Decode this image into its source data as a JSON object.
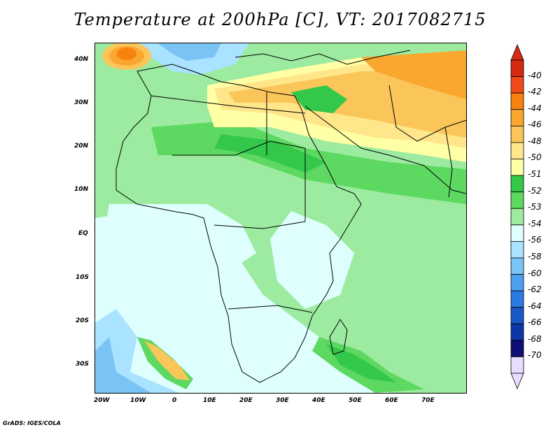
{
  "title": "Temperature at 200hPa [C], VT: 2017082715",
  "footer": "GrADS: IGES/COLA",
  "map": {
    "lat_ticks": [
      "40N",
      "30N",
      "20N",
      "10N",
      "EQ",
      "10S",
      "20S",
      "30S"
    ],
    "lon_ticks": [
      "20W",
      "10W",
      "0",
      "10E",
      "20E",
      "30E",
      "40E",
      "50E",
      "60E",
      "70E"
    ]
  },
  "colorbar": {
    "labels": [
      "-40",
      "-42",
      "-44",
      "-46",
      "-48",
      "-50",
      "-51",
      "-52",
      "-53",
      "-54",
      "-56",
      "-58",
      "-60",
      "-62",
      "-64",
      "-66",
      "-68",
      "-70"
    ],
    "colors": [
      "#d62b12",
      "#f04a1a",
      "#f7820f",
      "#f9a72f",
      "#fbc659",
      "#ffe68a",
      "#ffffa6",
      "#34c84a",
      "#5dd860",
      "#9ceba0",
      "#dfffff",
      "#a9e3ff",
      "#7ac4f5",
      "#4e9ff0",
      "#2b7be2",
      "#1958c7",
      "#0d37a9",
      "#0f0f75",
      "#e8ddff"
    ]
  }
}
